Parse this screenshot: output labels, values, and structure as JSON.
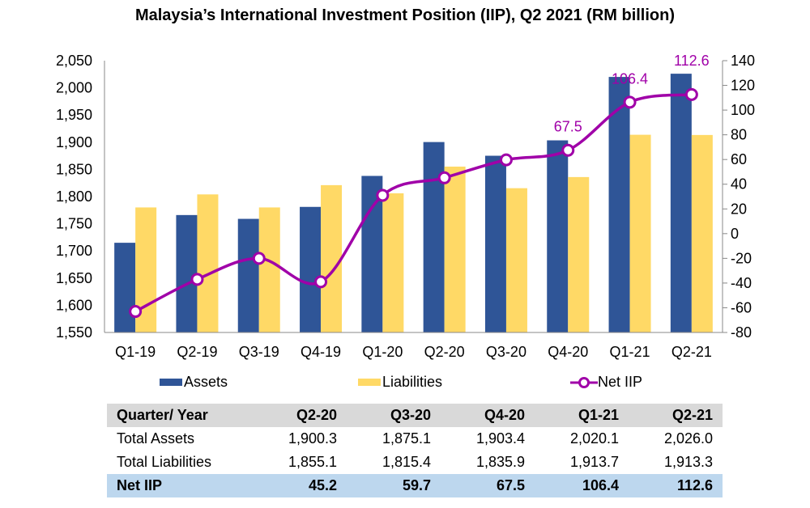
{
  "chart_data": {
    "type": "bar",
    "title": "Malaysia’s International Investment Position (IIP), Q2 2021 (RM billion)",
    "categories": [
      "Q1-19",
      "Q2-19",
      "Q3-19",
      "Q4-19",
      "Q1-20",
      "Q2-20",
      "Q3-20",
      "Q4-20",
      "Q1-21",
      "Q2-21"
    ],
    "series": [
      {
        "name": "Assets",
        "type": "bar",
        "axis": "left",
        "color": "#2F5597",
        "values": [
          1715,
          1766,
          1759,
          1781,
          1838,
          1900.3,
          1875.1,
          1903.4,
          2020.1,
          2026.0
        ]
      },
      {
        "name": "Liabilities",
        "type": "bar",
        "axis": "left",
        "color": "#FFD966",
        "values": [
          1780,
          1804,
          1780,
          1821,
          1806,
          1855.1,
          1815.4,
          1835.9,
          1913.7,
          1913.3
        ]
      },
      {
        "name": "Net IIP",
        "type": "line",
        "axis": "right",
        "color": "#A000A8",
        "values": [
          -63,
          -37,
          -20,
          -39,
          31,
          45.2,
          59.7,
          67.5,
          106.4,
          112.6
        ]
      }
    ],
    "data_labels": [
      {
        "category": "Q4-20",
        "text": "67.5"
      },
      {
        "category": "Q1-21",
        "text": "106.4"
      },
      {
        "category": "Q2-21",
        "text": "112.6"
      }
    ],
    "y_left": {
      "min": 1550,
      "max": 2050,
      "step": 50,
      "ticks": [
        "1,550",
        "1,600",
        "1,650",
        "1,700",
        "1,750",
        "1,800",
        "1,850",
        "1,900",
        "1,950",
        "2,000",
        "2,050"
      ]
    },
    "y_right": {
      "min": -80,
      "max": 140,
      "step": 20,
      "ticks": [
        "-80",
        "-60",
        "-40",
        "-20",
        "0",
        "20",
        "40",
        "60",
        "80",
        "100",
        "120",
        "140"
      ]
    },
    "xlabel": "",
    "ylabel": "",
    "grid": false,
    "legend_position": "bottom"
  },
  "legend": {
    "assets": "Assets",
    "liabilities": "Liabilities",
    "net": "Net IIP"
  },
  "table": {
    "header": [
      "Quarter/ Year",
      "Q2-20",
      "Q3-20",
      "Q4-20",
      "Q1-21",
      "Q2-21"
    ],
    "rows": [
      [
        "Total Assets",
        "1,900.3",
        "1,875.1",
        "1,903.4",
        "2,020.1",
        "2,026.0"
      ],
      [
        "Total Liabilities",
        "1,855.1",
        "1,815.4",
        "1,835.9",
        "1,913.7",
        "1,913.3"
      ],
      [
        "Net IIP",
        "45.2",
        "59.7",
        "67.5",
        "106.4",
        "112.6"
      ]
    ]
  }
}
